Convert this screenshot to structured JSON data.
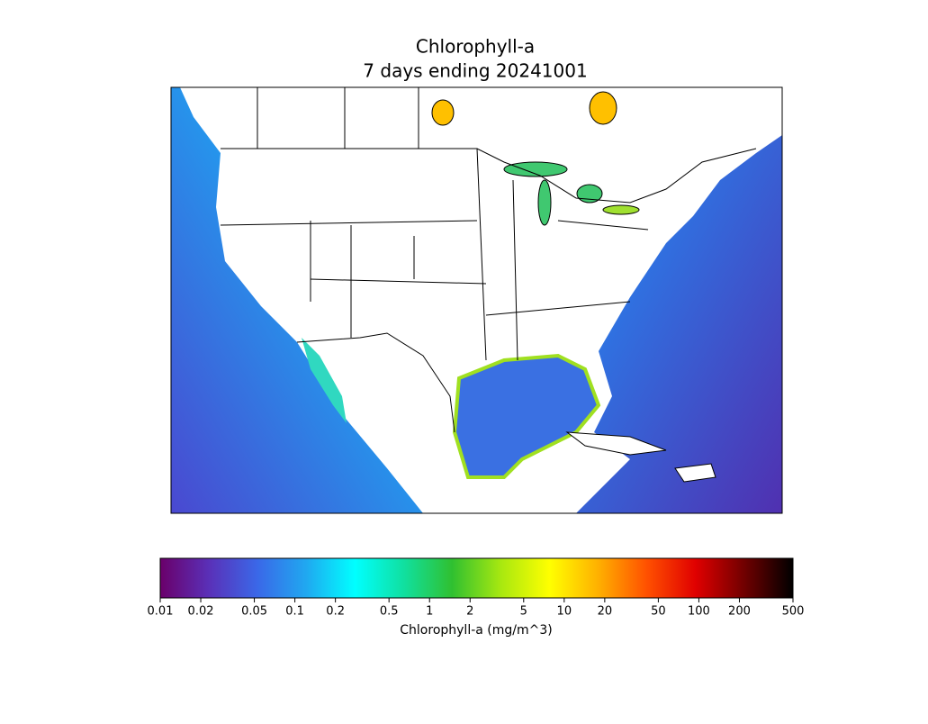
{
  "chart_data": {
    "type": "colorbar-map",
    "title": "Chlorophyll-a",
    "subtitle": "7 days ending 20241001",
    "colorbar_label": "Chlorophyll-a (mg/m^3)",
    "log_scale": true,
    "xlim": [
      0.01,
      500
    ],
    "xticks": [
      0.01,
      0.02,
      0.05,
      0.1,
      0.2,
      0.5,
      1,
      2,
      5,
      10,
      20,
      50,
      100,
      200,
      500
    ],
    "colormap": [
      "#6a006a",
      "#5a30b8",
      "#3a68e8",
      "#20a8f0",
      "#00ffff",
      "#10e0a0",
      "#30c030",
      "#a8e810",
      "#ffff00",
      "#ffb000",
      "#ff5000",
      "#e00000",
      "#700000",
      "#000000"
    ]
  }
}
